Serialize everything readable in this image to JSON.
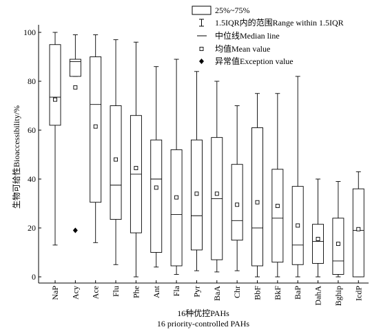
{
  "chart_data": {
    "type": "box",
    "ylabel": "生物可给性Bioaccessibility/%",
    "xlabel_line1": "16种优控PAHs",
    "xlabel_line2": "16 priority-controlled PAHs",
    "ylim": [
      0,
      100
    ],
    "yticks": [
      "0",
      "20",
      "40",
      "60",
      "80",
      "100"
    ],
    "legend": {
      "box": "25%~75%",
      "whisker": "1.5IQR内的范围Range within 1.5IQR",
      "median": "中位线Median line",
      "mean": "均值Mean value",
      "outlier": "异常值Exception value"
    },
    "categories": [
      "NaP",
      "Acy",
      "Ace",
      "Flu",
      "Phe",
      "Ant",
      "Fla",
      "Pyr",
      "BaA",
      "Chr",
      "BbF",
      "BkF",
      "BaP",
      "DahA",
      "Bghip",
      "IcdP"
    ],
    "boxes": [
      {
        "name": "NaP",
        "min": 13,
        "q1": 62,
        "median": 73.5,
        "q3": 95,
        "max": 100,
        "mean": 72.5,
        "outliers": []
      },
      {
        "name": "Acy",
        "min": 82,
        "q1": 82,
        "median": 88,
        "q3": 89,
        "max": 99,
        "mean": 77.5,
        "outliers": [
          19
        ]
      },
      {
        "name": "Ace",
        "min": 14,
        "q1": 30.5,
        "median": 70.5,
        "q3": 90,
        "max": 99,
        "mean": 61.5,
        "outliers": []
      },
      {
        "name": "Flu",
        "min": 5,
        "q1": 23.5,
        "median": 37.5,
        "q3": 70,
        "max": 97,
        "mean": 48,
        "outliers": []
      },
      {
        "name": "Phe",
        "min": 0,
        "q1": 18,
        "median": 42,
        "q3": 66,
        "max": 96,
        "mean": 44.5,
        "outliers": []
      },
      {
        "name": "Ant",
        "min": 4,
        "q1": 10,
        "median": 40,
        "q3": 56,
        "max": 86,
        "mean": 36.5,
        "outliers": []
      },
      {
        "name": "Fla",
        "min": 1,
        "q1": 4.5,
        "median": 25.5,
        "q3": 52,
        "max": 89,
        "mean": 32.5,
        "outliers": []
      },
      {
        "name": "Pyr",
        "min": 2.5,
        "q1": 11,
        "median": 25,
        "q3": 56,
        "max": 84,
        "mean": 34,
        "outliers": []
      },
      {
        "name": "BaA",
        "min": 2,
        "q1": 7,
        "median": 32,
        "q3": 57,
        "max": 80,
        "mean": 34,
        "outliers": []
      },
      {
        "name": "Chr",
        "min": 2.5,
        "q1": 15,
        "median": 23,
        "q3": 46,
        "max": 70,
        "mean": 29.5,
        "outliers": []
      },
      {
        "name": "BbF",
        "min": 0,
        "q1": 4.5,
        "median": 20,
        "q3": 61,
        "max": 75,
        "mean": 30.5,
        "outliers": []
      },
      {
        "name": "BkF",
        "min": 0,
        "q1": 6,
        "median": 24,
        "q3": 44,
        "max": 75,
        "mean": 29,
        "outliers": []
      },
      {
        "name": "BaP",
        "min": 0,
        "q1": 5,
        "median": 13,
        "q3": 37,
        "max": 82,
        "mean": 21,
        "outliers": []
      },
      {
        "name": "DahA",
        "min": 0,
        "q1": 5.5,
        "median": 14.5,
        "q3": 21.5,
        "max": 40,
        "mean": 15.5,
        "outliers": []
      },
      {
        "name": "Bghip",
        "min": 0,
        "q1": 1,
        "median": 6.5,
        "q3": 24,
        "max": 39,
        "mean": 13.5,
        "outliers": []
      },
      {
        "name": "IcdP",
        "min": 0,
        "q1": 0,
        "median": 19,
        "q3": 36,
        "max": 43,
        "mean": 19.5,
        "outliers": []
      }
    ]
  }
}
